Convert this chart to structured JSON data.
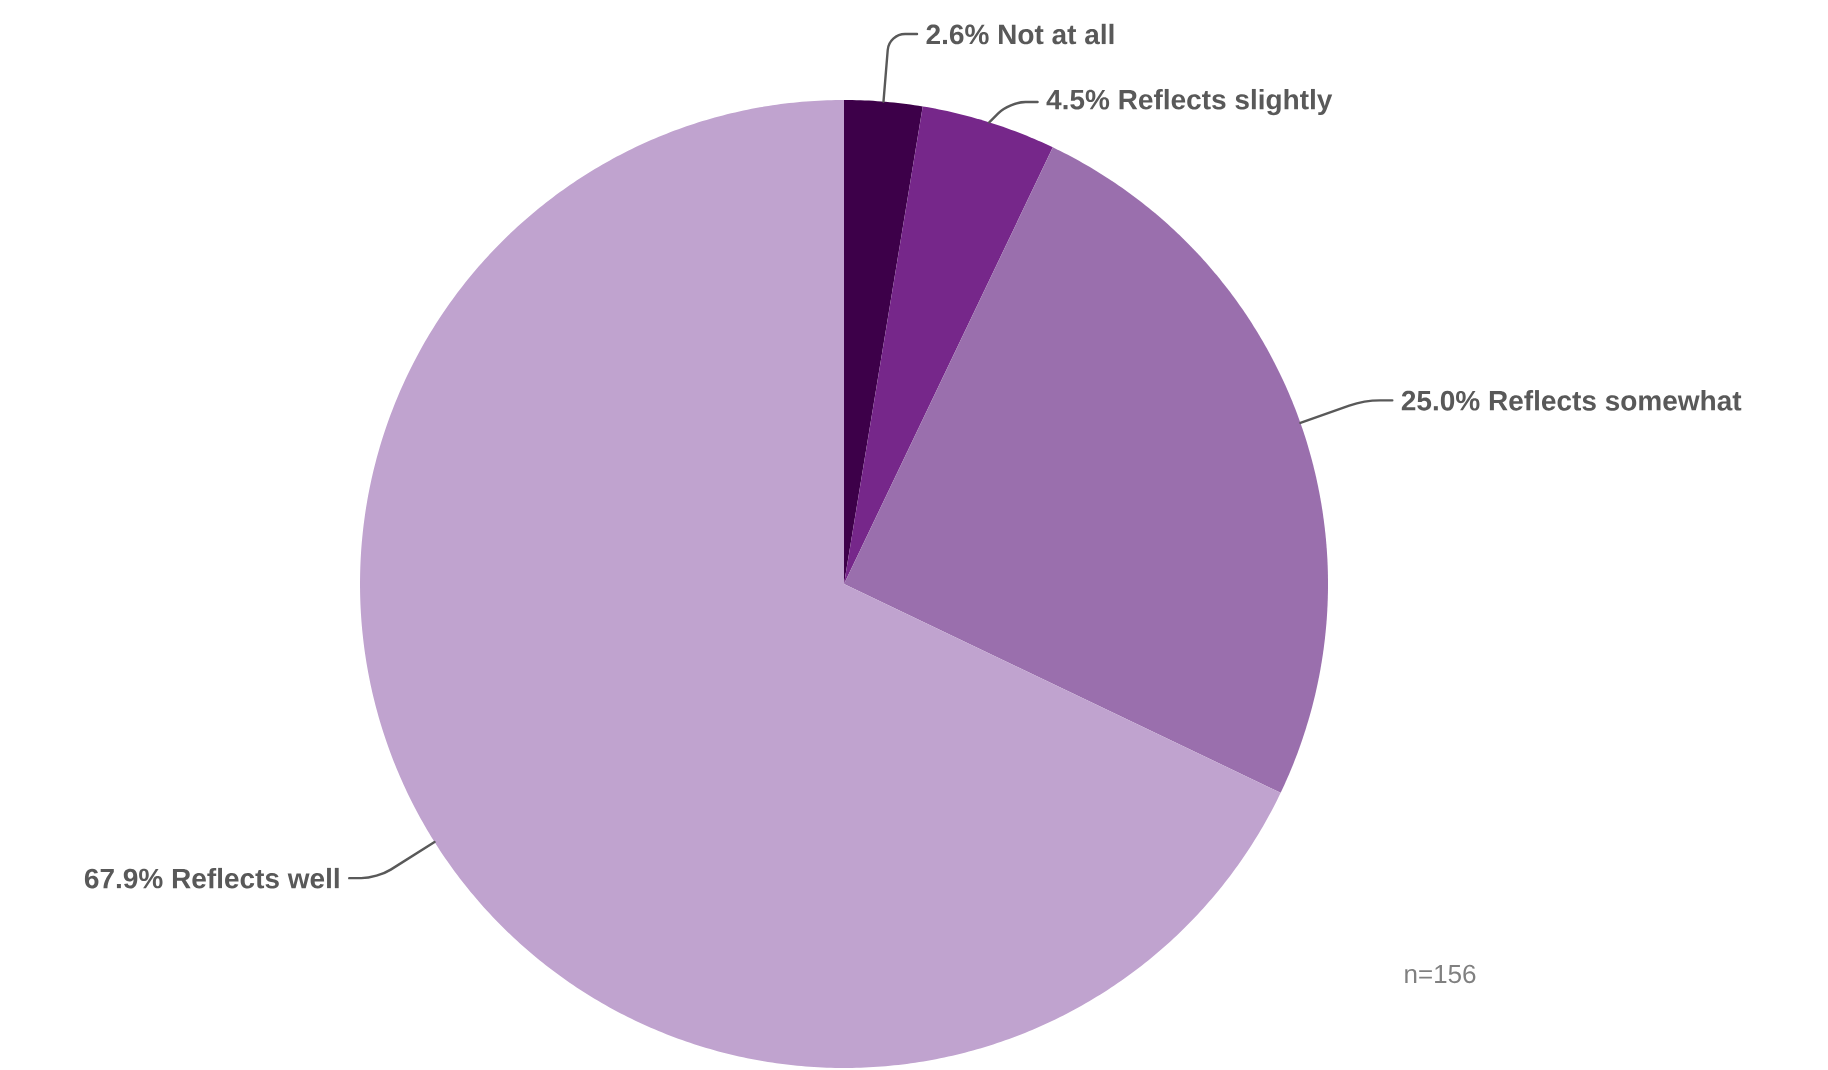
{
  "chart_data": {
    "type": "pie",
    "categories": [
      "Not at all",
      "Reflects slightly",
      "Reflects somewhat",
      "Reflects well"
    ],
    "values": [
      2.6,
      4.5,
      25.0,
      67.9
    ],
    "value_labels": [
      "2.6%",
      "4.5%",
      "25.0%",
      "67.9%"
    ],
    "colors": [
      "#3d0049",
      "#76278a",
      "#9a6fad",
      "#c0a3cf"
    ],
    "annotations": [
      "n=156"
    ]
  }
}
